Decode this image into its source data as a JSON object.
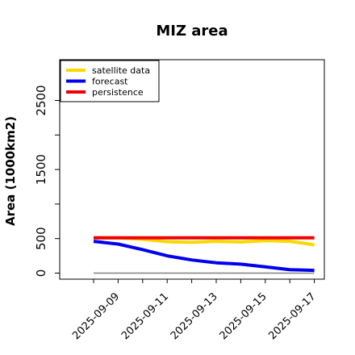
{
  "chart_data": {
    "type": "line",
    "title": "MIZ area",
    "xlabel": "",
    "ylabel": "Area (1000km2)",
    "x": [
      "2025-09-08",
      "2025-09-09",
      "2025-09-10",
      "2025-09-11",
      "2025-09-12",
      "2025-09-13",
      "2025-09-14",
      "2025-09-15",
      "2025-09-16",
      "2025-09-17"
    ],
    "xticks": [
      {
        "label": "2025-09-09",
        "color": "#228B22"
      },
      {
        "label": "2025-09-11",
        "color": "#000000"
      },
      {
        "label": "2025-09-13",
        "color": "#000000"
      },
      {
        "label": "2025-09-15",
        "color": "#000000"
      },
      {
        "label": "2025-09-17",
        "color": "#000000"
      }
    ],
    "yticks": [
      0,
      500,
      1500,
      2500
    ],
    "yticks_minor": [
      1000,
      2000
    ],
    "ylim": [
      -80,
      3100
    ],
    "grid": false,
    "legend_position": "top-left",
    "series": [
      {
        "name": "satellite data",
        "color": "#FFD700",
        "values": [
          510,
          510,
          490,
          455,
          445,
          460,
          450,
          470,
          460,
          410
        ]
      },
      {
        "name": "forecast",
        "color": "#0000EE",
        "values": [
          460,
          420,
          340,
          250,
          190,
          150,
          130,
          90,
          50,
          40
        ]
      },
      {
        "name": "persistence",
        "color": "#EE0000",
        "values": [
          510,
          510,
          510,
          510,
          510,
          510,
          510,
          510,
          510,
          510
        ]
      }
    ],
    "reference_line": {
      "value": 0,
      "color": "#808080"
    }
  }
}
